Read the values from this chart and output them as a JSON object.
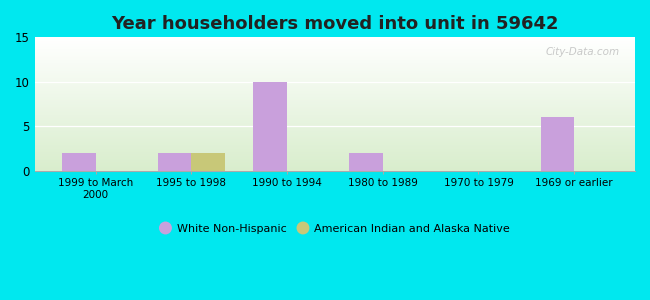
{
  "title": "Year householders moved into unit in 59642",
  "categories": [
    "1999 to March\n2000",
    "1995 to 1998",
    "1990 to 1994",
    "1980 to 1989",
    "1970 to 1979",
    "1969 or earlier"
  ],
  "white_non_hispanic": [
    2,
    2,
    10,
    2,
    0,
    6
  ],
  "american_indian": [
    0,
    2,
    0,
    0,
    0,
    0
  ],
  "white_color": "#c9a0dc",
  "indian_color": "#c8c878",
  "ylim": [
    0,
    15
  ],
  "yticks": [
    0,
    5,
    10,
    15
  ],
  "outer_bg": "#00e8ef",
  "legend_labels": [
    "White Non-Hispanic",
    "American Indian and Alaska Native"
  ],
  "bar_width": 0.35,
  "title_fontsize": 13,
  "gradient_top": "#ffffff",
  "gradient_bottom": "#d8edcc",
  "watermark": "City-Data.com"
}
